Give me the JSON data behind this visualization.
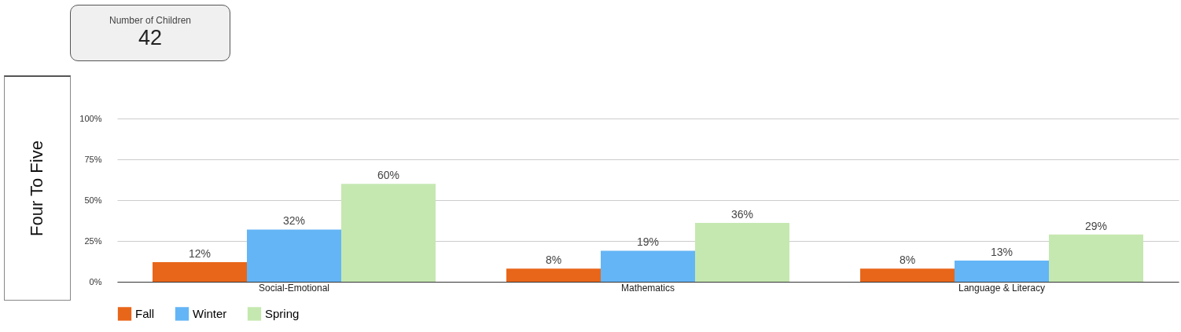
{
  "chart_data": {
    "type": "bar",
    "ylabel": "Four To Five",
    "annotations": [
      "Number of Children",
      "42"
    ],
    "categories": [
      "Social-Emotional",
      "Mathematics",
      "Language & Literacy"
    ],
    "series": [
      {
        "name": "Fall",
        "color": "#e8661a",
        "values": [
          12,
          8,
          8
        ],
        "value_labels": [
          "12%",
          "8%",
          "8%"
        ]
      },
      {
        "name": "Winter",
        "color": "#64b5f6",
        "values": [
          32,
          19,
          13
        ],
        "value_labels": [
          "32%",
          "19%",
          "13%"
        ]
      },
      {
        "name": "Spring",
        "color": "#c5e8b0",
        "values": [
          60,
          36,
          29
        ],
        "value_labels": [
          "60%",
          "36%",
          "29%"
        ]
      }
    ],
    "ylim": [
      0,
      100
    ],
    "yticks": [
      {
        "value": 0,
        "label": "0%"
      },
      {
        "value": 25,
        "label": "25%"
      },
      {
        "value": 50,
        "label": "50%"
      },
      {
        "value": 75,
        "label": "75%"
      },
      {
        "value": 100,
        "label": "100%"
      }
    ],
    "grid": "y",
    "legend": "bottom"
  }
}
